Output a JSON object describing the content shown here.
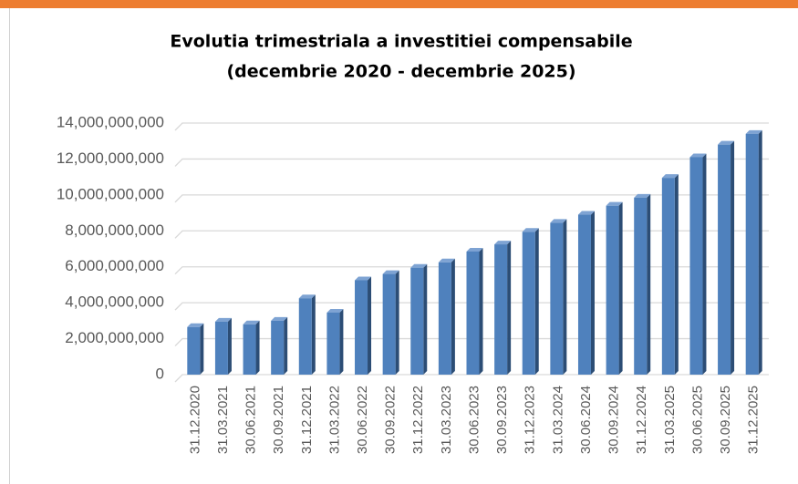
{
  "chart_data": {
    "type": "bar3d",
    "title": "Evolutia trimestriala a investitiei compensabile",
    "subtitle": "(decembrie 2020 - decembrie 2025)",
    "categories": [
      "31.12.2020",
      "31.03.2021",
      "30.06.2021",
      "30.09.2021",
      "31.12.2021",
      "31.03.2022",
      "30.06.2022",
      "30.09.2022",
      "31.12.2022",
      "31.03.2023",
      "30.06.2023",
      "30.09.2023",
      "31.12.2023",
      "31.03.2024",
      "30.06.2024",
      "30.09.2024",
      "31.12.2024",
      "31.03.2025",
      "30.06.2025",
      "30.09.2025",
      "31.12.2025"
    ],
    "values": [
      2650000000,
      2950000000,
      2800000000,
      3000000000,
      4250000000,
      3450000000,
      5250000000,
      5600000000,
      5950000000,
      6250000000,
      6850000000,
      7250000000,
      7950000000,
      8450000000,
      8900000000,
      9400000000,
      9850000000,
      10950000000,
      12100000000,
      12800000000,
      13400000000
    ],
    "color": "#4f81bd",
    "ylim": [
      0,
      14000000000
    ],
    "yticks": [
      0,
      {
        "value": 2000000000,
        "label": "2,000,000,000"
      },
      {
        "value": 4000000000,
        "label": "4,000,000,000"
      },
      {
        "value": 6000000000,
        "label": "6,000,000,000"
      },
      {
        "value": 8000000000,
        "label": "8,000,000,000"
      },
      {
        "value": 10000000000,
        "label": "10,000,000,000"
      },
      {
        "value": 12000000000,
        "label": "12,000,000,000"
      },
      {
        "value": 14000000000,
        "label": "14,000,000,000"
      }
    ],
    "grid": true
  }
}
